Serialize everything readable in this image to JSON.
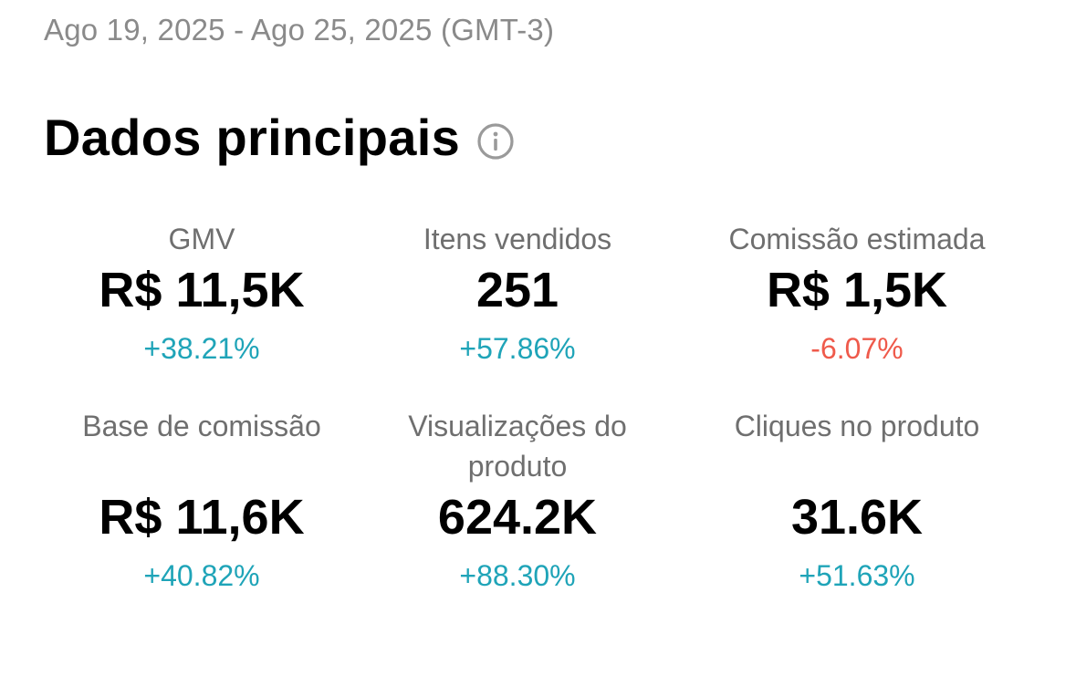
{
  "date_range": "Ago 19, 2025 - Ago 25, 2025 (GMT-3)",
  "section": {
    "title": "Dados principais",
    "info_icon": "info-icon"
  },
  "colors": {
    "positive": "#1fa4b8",
    "negative": "#ef5a4b",
    "label": "#6f6f6f",
    "date": "#8a8a8a"
  },
  "metrics": [
    {
      "label": "GMV",
      "value": "R$ 11,5K",
      "change": "+38.21%",
      "trend": "positive"
    },
    {
      "label": "Itens vendidos",
      "value": "251",
      "change": "+57.86%",
      "trend": "positive"
    },
    {
      "label": "Comissão estimada",
      "value": "R$ 1,5K",
      "change": "-6.07%",
      "trend": "negative"
    },
    {
      "label": "Base de comissão",
      "value": "R$ 11,6K",
      "change": "+40.82%",
      "trend": "positive"
    },
    {
      "label": "Visualizações do produto",
      "value": "624.2K",
      "change": "+88.30%",
      "trend": "positive"
    },
    {
      "label": "Cliques no produto",
      "value": "31.6K",
      "change": "+51.63%",
      "trend": "positive"
    }
  ]
}
